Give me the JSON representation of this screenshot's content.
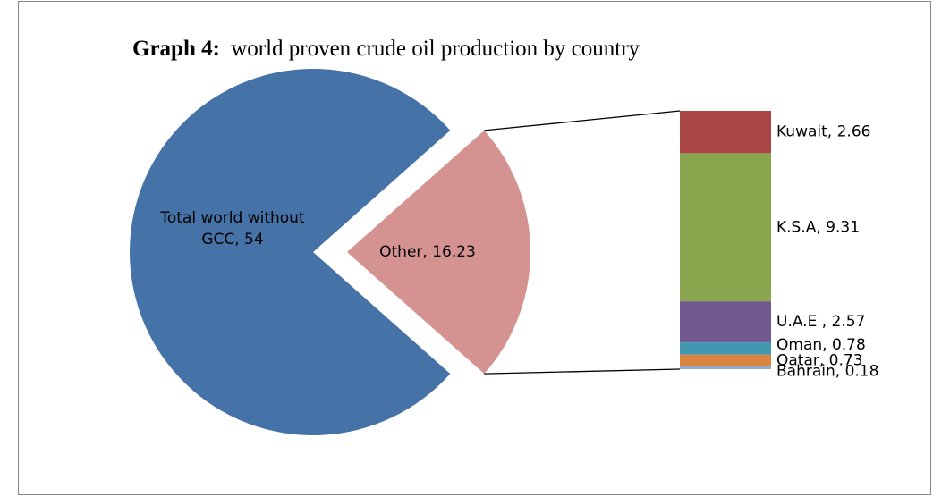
{
  "chart_data": {
    "type": "pie-of-bar",
    "title_prefix": "Graph 4:",
    "title": "world proven crude oil production by country",
    "categories": [
      "Total world without GCC",
      "Other"
    ],
    "values": [
      54,
      16.23
    ],
    "value_labels": [
      "Total world without GCC, 54",
      "Other, 16.23"
    ],
    "colors": [
      "#4572a7",
      "#d49391"
    ],
    "breakdown": {
      "categories": [
        "Kuwait",
        "K.S.A",
        "U.A.E ",
        "Oman",
        "Qatar",
        "Bahrain"
      ],
      "values": [
        2.66,
        9.31,
        2.57,
        0.78,
        0.73,
        0.18
      ],
      "value_labels": [
        "Kuwait, 2.66",
        "K.S.A, 9.31",
        "U.A.E , 2.57",
        "Oman, 0.78",
        "Qatar, 0.73",
        "Bahrain, 0.18"
      ],
      "colors": [
        "#aa4643",
        "#89a54e",
        "#71588f",
        "#4198af",
        "#db843d",
        "#93a9cf"
      ]
    }
  }
}
